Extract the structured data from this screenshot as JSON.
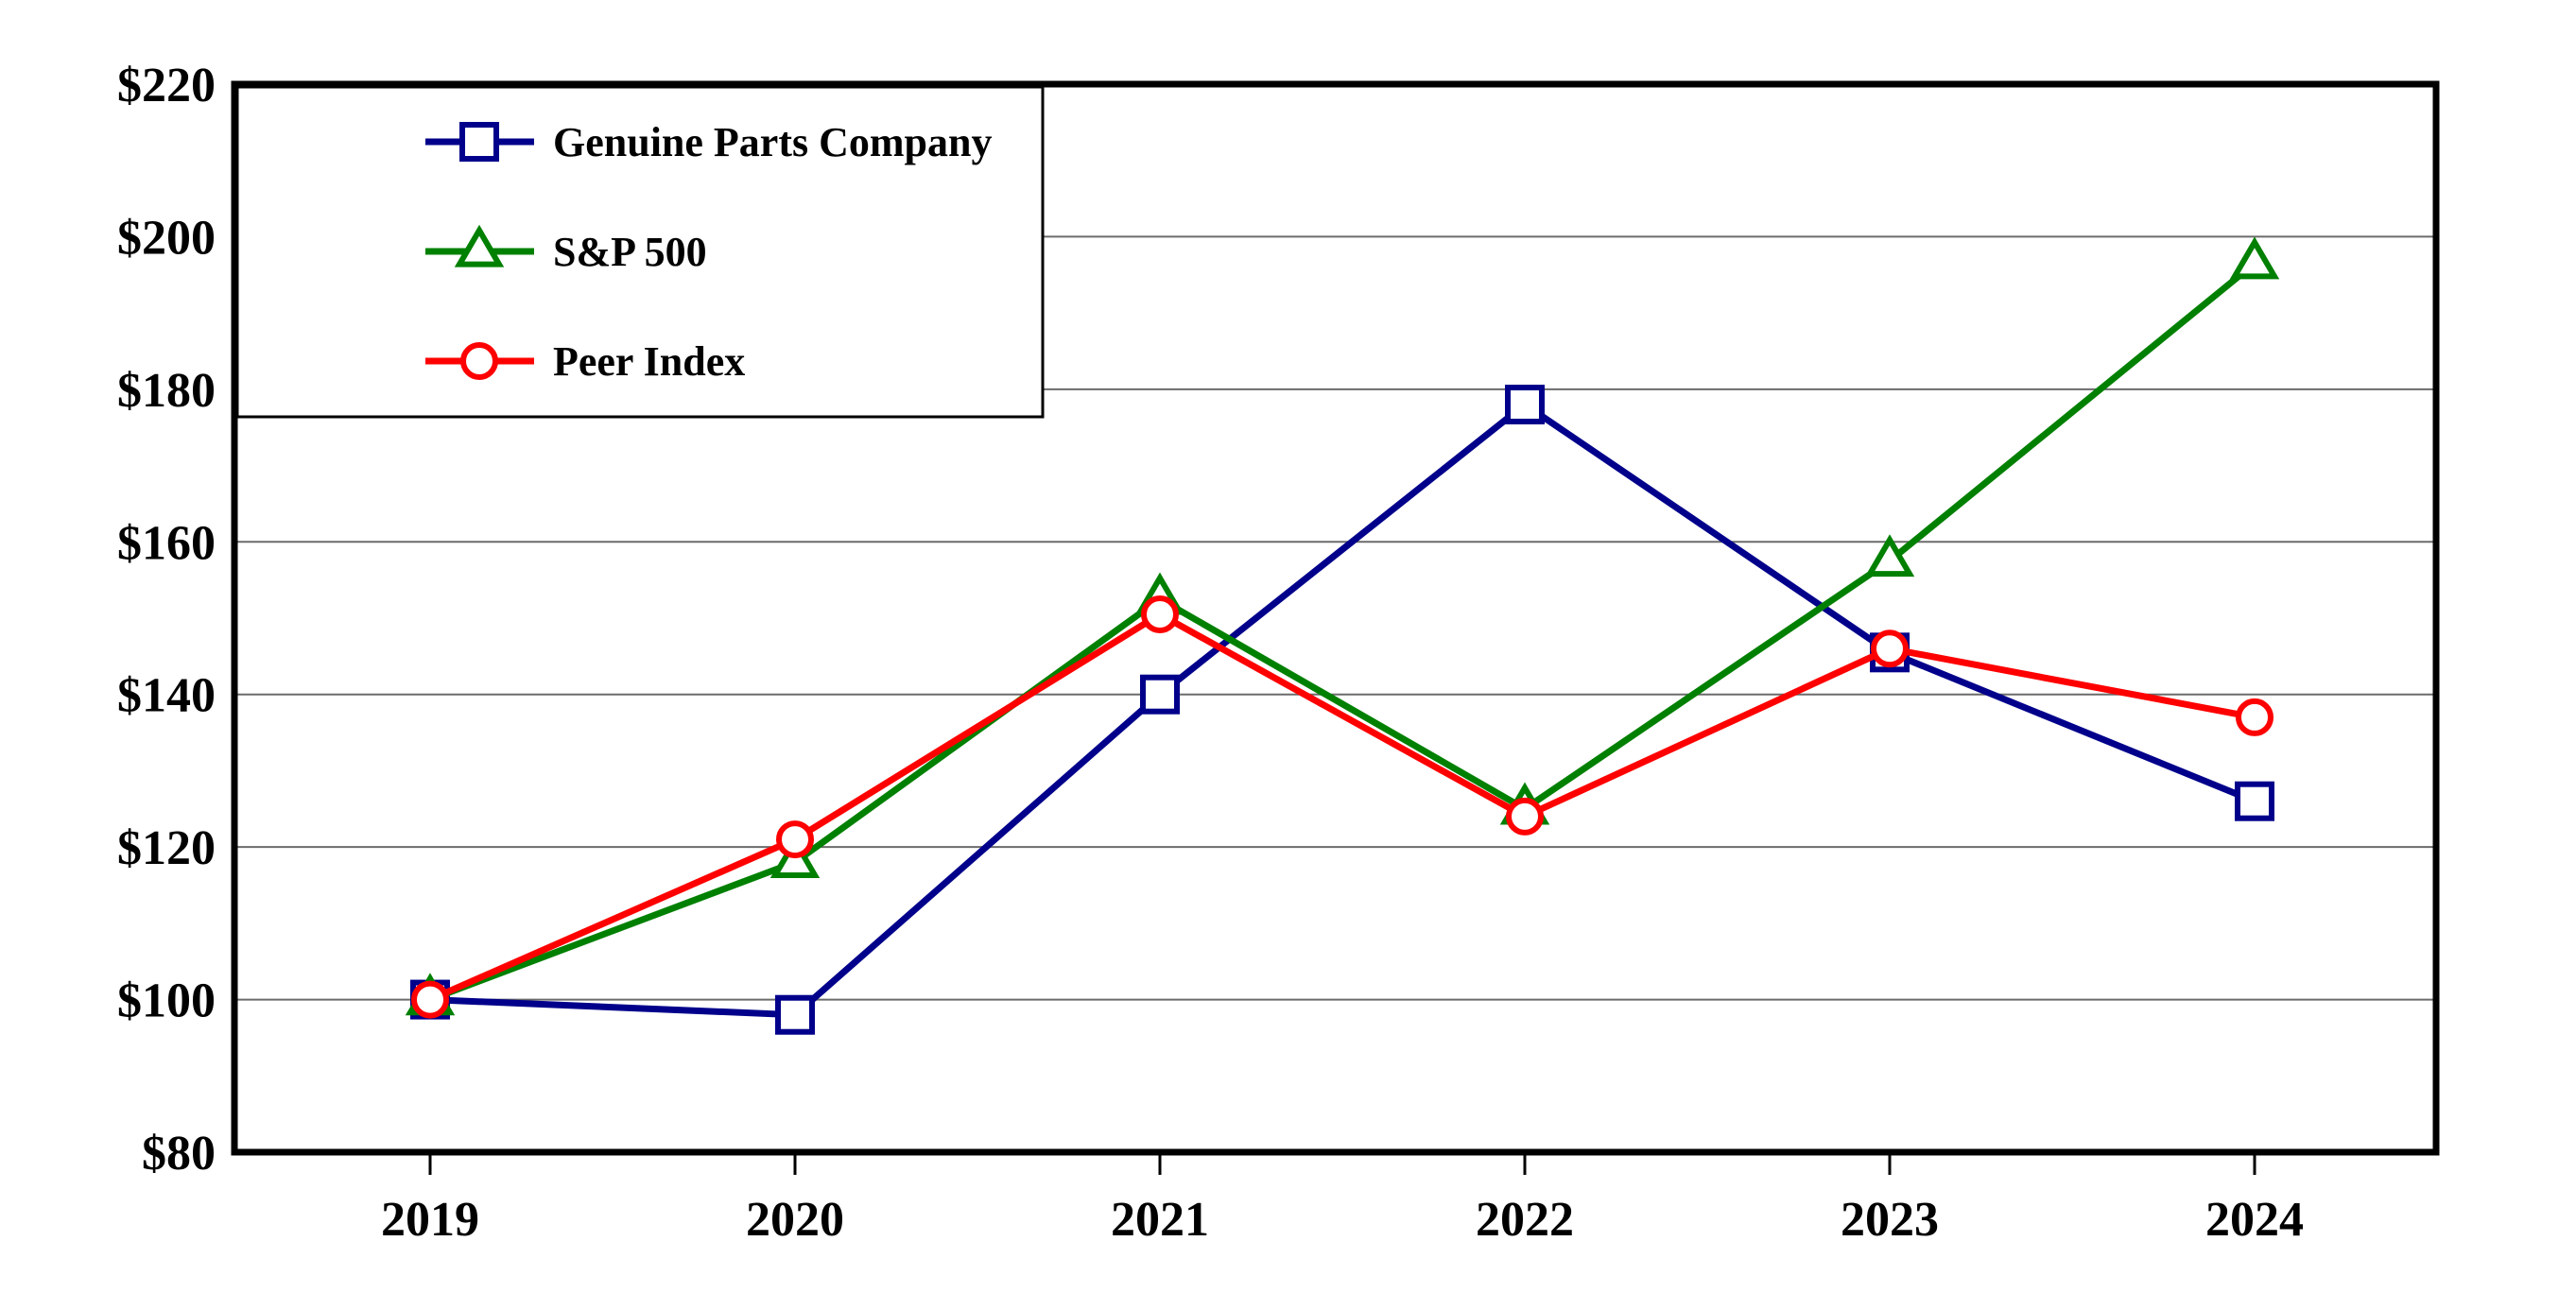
{
  "chart_data": {
    "type": "line",
    "title": "",
    "xlabel": "",
    "ylabel": "",
    "x": [
      "2019",
      "2020",
      "2021",
      "2022",
      "2023",
      "2024"
    ],
    "series": [
      {
        "name": "Genuine Parts Company",
        "color": "#00008B",
        "marker": "square",
        "values": [
          100,
          98,
          140,
          178,
          145.5,
          126
        ]
      },
      {
        "name": "S&P 500",
        "color": "#008000",
        "marker": "triangle",
        "values": [
          100,
          118,
          152.5,
          125,
          157.5,
          196.5
        ]
      },
      {
        "name": "Peer Index",
        "color": "#FF0000",
        "marker": "circle",
        "values": [
          100,
          121,
          150.5,
          124,
          146,
          137
        ]
      }
    ],
    "y_axis": {
      "min": 80,
      "max": 220,
      "step": 20,
      "tick_labels": [
        "$80",
        "$100",
        "$120",
        "$140",
        "$160",
        "$180",
        "$200",
        "$220"
      ]
    },
    "grid": "horizontal-on",
    "legend_position": "top-left-inside",
    "colors": {
      "background": "#FFFFFF",
      "frame": "#000000",
      "gridline": "#6B6B6B",
      "text": "#000000",
      "marker_fill": "#FFFFFF"
    }
  }
}
